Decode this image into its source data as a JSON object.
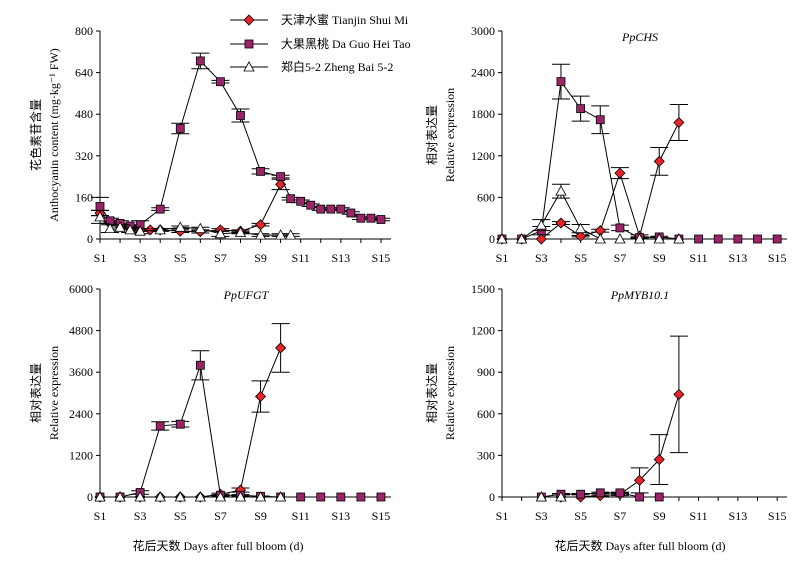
{
  "legend": [
    {
      "label": "天津水蜜 Tianjin Shui Mi",
      "marker": "diamond",
      "color": "#e8232a"
    },
    {
      "label": "大果黑桃 Da Guo Hei Tao",
      "marker": "square",
      "color": "#9b2468"
    },
    {
      "label": "郑白5-2 Zheng Bai 5-2",
      "marker": "triangle",
      "color": "#ffffff"
    }
  ],
  "x_axis_label": "花后天数 Days after full bloom (d)",
  "chart_data": [
    {
      "type": "line",
      "title": "",
      "ylabel_cn": "花色素苷含量",
      "ylabel_en": "Anthocyanin content (mg·kg⁻¹ FW)",
      "ylim": [
        0,
        800
      ],
      "yticks": [
        "0",
        "160",
        "320",
        "480",
        "640",
        "800"
      ],
      "xticks": [
        "S1",
        "S3",
        "S5",
        "S7",
        "S9",
        "S11",
        "S13",
        "S15"
      ],
      "x_range": [
        1,
        15.5
      ],
      "series": [
        {
          "name": "天津水蜜 Tianjin Shui Mi",
          "x": [
            1,
            1.5,
            2,
            2.5,
            3,
            3.5,
            4,
            5,
            6,
            7,
            8,
            9,
            10
          ],
          "y": [
            100,
            65,
            55,
            45,
            35,
            35,
            35,
            30,
            28,
            35,
            30,
            55,
            210
          ],
          "err": [
            10,
            5,
            5,
            5,
            5,
            5,
            5,
            5,
            5,
            5,
            5,
            5,
            20
          ]
        },
        {
          "name": "大果黑桃 Da Guo Hei Tao",
          "x": [
            1,
            1.5,
            2,
            2.5,
            3,
            4,
            5,
            6,
            7,
            8,
            9,
            10,
            10.5,
            11,
            11.5,
            12,
            12.5,
            13,
            13.5,
            14,
            14.5,
            15
          ],
          "y": [
            125,
            70,
            60,
            50,
            55,
            115,
            425,
            685,
            605,
            475,
            260,
            240,
            155,
            145,
            130,
            115,
            115,
            115,
            100,
            80,
            80,
            75
          ],
          "err": [
            35,
            10,
            10,
            5,
            15,
            5,
            20,
            30,
            5,
            25,
            10,
            5,
            5,
            5,
            5,
            5,
            5,
            5,
            5,
            5,
            5,
            5
          ]
        },
        {
          "name": "郑白5-2 Zheng Bai 5-2",
          "x": [
            1,
            1.5,
            2,
            2.5,
            3,
            4,
            5,
            6,
            7,
            8,
            9,
            10,
            10.5
          ],
          "y": [
            85,
            40,
            45,
            35,
            30,
            35,
            45,
            40,
            20,
            25,
            15,
            15,
            15
          ],
          "err": [
            25,
            15,
            10,
            10,
            10,
            5,
            5,
            5,
            10,
            5,
            5,
            5,
            5
          ]
        }
      ]
    },
    {
      "type": "line",
      "title": "PpCHS",
      "ylabel_cn": "相对表达量",
      "ylabel_en": "Relative expression",
      "ylim": [
        0,
        3000
      ],
      "yticks": [
        "0",
        "600",
        "1200",
        "1800",
        "2400",
        "3000"
      ],
      "xticks": [
        "S1",
        "S3",
        "S5",
        "S7",
        "S9",
        "S11",
        "S13",
        "S15"
      ],
      "x_range": [
        1,
        15.5
      ],
      "series": [
        {
          "name": "天津水蜜 Tianjin Shui Mi",
          "x": [
            1,
            2,
            3,
            4,
            5,
            6,
            7,
            8,
            9,
            10
          ],
          "y": [
            0,
            0,
            0,
            230,
            40,
            120,
            950,
            40,
            1120,
            1680
          ],
          "err": [
            0,
            0,
            0,
            20,
            10,
            20,
            80,
            20,
            200,
            260
          ]
        },
        {
          "name": "大果黑桃 Da Guo Hei Tao",
          "x": [
            1,
            2,
            3,
            4,
            5,
            6,
            7,
            8,
            9,
            10,
            11,
            12,
            13,
            14,
            15
          ],
          "y": [
            0,
            0,
            120,
            2270,
            1880,
            1720,
            160,
            20,
            30,
            0,
            0,
            0,
            0,
            0,
            0
          ],
          "err": [
            0,
            0,
            60,
            250,
            180,
            200,
            40,
            10,
            10,
            0,
            0,
            0,
            0,
            0,
            0
          ]
        },
        {
          "name": "郑白5-2 Zheng Bai 5-2",
          "x": [
            1,
            2,
            3,
            4,
            5,
            6,
            7,
            8,
            9,
            10
          ],
          "y": [
            0,
            0,
            200,
            690,
            150,
            0,
            0,
            0,
            0,
            0
          ],
          "err": [
            0,
            0,
            80,
            100,
            60,
            0,
            0,
            0,
            0,
            0
          ]
        }
      ]
    },
    {
      "type": "line",
      "title": "PpUFGT",
      "ylabel_cn": "相对表达量",
      "ylabel_en": "Relative expression",
      "ylim": [
        0,
        6000
      ],
      "yticks": [
        "0",
        "1200",
        "2400",
        "3600",
        "4800",
        "6000"
      ],
      "xticks": [
        "S1",
        "S3",
        "S5",
        "S7",
        "S9",
        "S11",
        "S13",
        "S15"
      ],
      "x_range": [
        1,
        15.5
      ],
      "series": [
        {
          "name": "天津水蜜 Tianjin Shui Mi",
          "x": [
            1,
            2,
            3,
            4,
            5,
            6,
            7,
            8,
            9,
            10
          ],
          "y": [
            0,
            0,
            0,
            0,
            0,
            0,
            80,
            200,
            2900,
            4300
          ],
          "err": [
            0,
            0,
            0,
            0,
            0,
            0,
            30,
            60,
            450,
            700
          ]
        },
        {
          "name": "大果黑桃 Da Guo Hei Tao",
          "x": [
            1,
            2,
            3,
            4,
            5,
            6,
            7,
            8,
            9,
            10,
            11,
            12,
            13,
            14,
            15
          ],
          "y": [
            0,
            0,
            130,
            2050,
            2100,
            3800,
            50,
            50,
            20,
            0,
            0,
            0,
            0,
            0,
            0
          ],
          "err": [
            0,
            0,
            50,
            120,
            80,
            420,
            20,
            20,
            10,
            0,
            0,
            0,
            0,
            0,
            0
          ]
        },
        {
          "name": "郑白5-2 Zheng Bai 5-2",
          "x": [
            1,
            2,
            3,
            4,
            5,
            6,
            7,
            8,
            9,
            10
          ],
          "y": [
            0,
            0,
            0,
            0,
            0,
            0,
            0,
            0,
            0,
            0
          ],
          "err": [
            0,
            0,
            0,
            0,
            0,
            0,
            0,
            0,
            0,
            0
          ]
        }
      ]
    },
    {
      "type": "line",
      "title": "PpMYB10.1",
      "ylabel_cn": "相对表达量",
      "ylabel_en": "Relative expression",
      "ylim": [
        0,
        1500
      ],
      "yticks": [
        "0",
        "300",
        "600",
        "900",
        "1200",
        "1500"
      ],
      "xticks": [
        "S1",
        "S3",
        "S5",
        "S7",
        "S9",
        "S11",
        "S13",
        "S15"
      ],
      "x_range": [
        1,
        15.5
      ],
      "series": [
        {
          "name": "天津水蜜 Tianjin Shui Mi",
          "x": [
            4,
            5,
            6,
            7,
            8,
            9,
            10
          ],
          "y": [
            0,
            0,
            10,
            20,
            120,
            270,
            740
          ],
          "err": [
            0,
            0,
            5,
            10,
            90,
            180,
            420
          ]
        },
        {
          "name": "大果黑桃 Da Guo Hei Tao",
          "x": [
            3,
            4,
            5,
            6,
            7,
            8,
            9
          ],
          "y": [
            0,
            20,
            20,
            30,
            30,
            0,
            0
          ],
          "err": [
            0,
            5,
            5,
            5,
            5,
            0,
            0
          ]
        },
        {
          "name": "郑白5-2 Zheng Bai 5-2",
          "x": [
            3,
            4
          ],
          "y": [
            0,
            0
          ],
          "err": [
            0,
            0
          ]
        }
      ]
    }
  ]
}
